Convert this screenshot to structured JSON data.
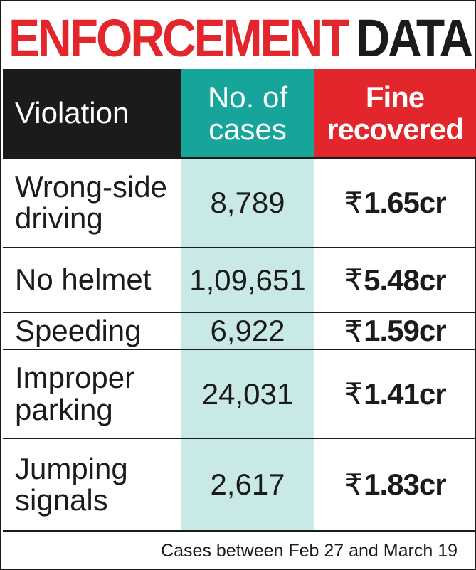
{
  "title": {
    "part1": "ENFORCEMENT",
    "part2": "DATA",
    "color_part1": "#e3262b",
    "color_part2": "#1b1b1b"
  },
  "chart_data": {
    "type": "table",
    "columns": [
      "Violation",
      "No. of cases",
      "Fine recovered"
    ],
    "header_colors": [
      "#1b1b1b",
      "#17a49a",
      "#e3262b"
    ],
    "rows": [
      {
        "violation": "Wrong-side driving",
        "cases": "8,789",
        "fine_symbol": "₹",
        "fine_value": "1.65cr"
      },
      {
        "violation": "No helmet",
        "cases": "1,09,651",
        "fine_symbol": "₹",
        "fine_value": "5.48cr"
      },
      {
        "violation": "Speeding",
        "cases": "6,922",
        "fine_symbol": "₹",
        "fine_value": "1.59cr"
      },
      {
        "violation": "Improper parking",
        "cases": "24,031",
        "fine_symbol": "₹",
        "fine_value": "1.41cr"
      },
      {
        "violation": "Jumping signals",
        "cases": "2,617",
        "fine_symbol": "₹",
        "fine_value": "1.83cr"
      }
    ],
    "footnote": "Cases between Feb 27 and March 19"
  }
}
